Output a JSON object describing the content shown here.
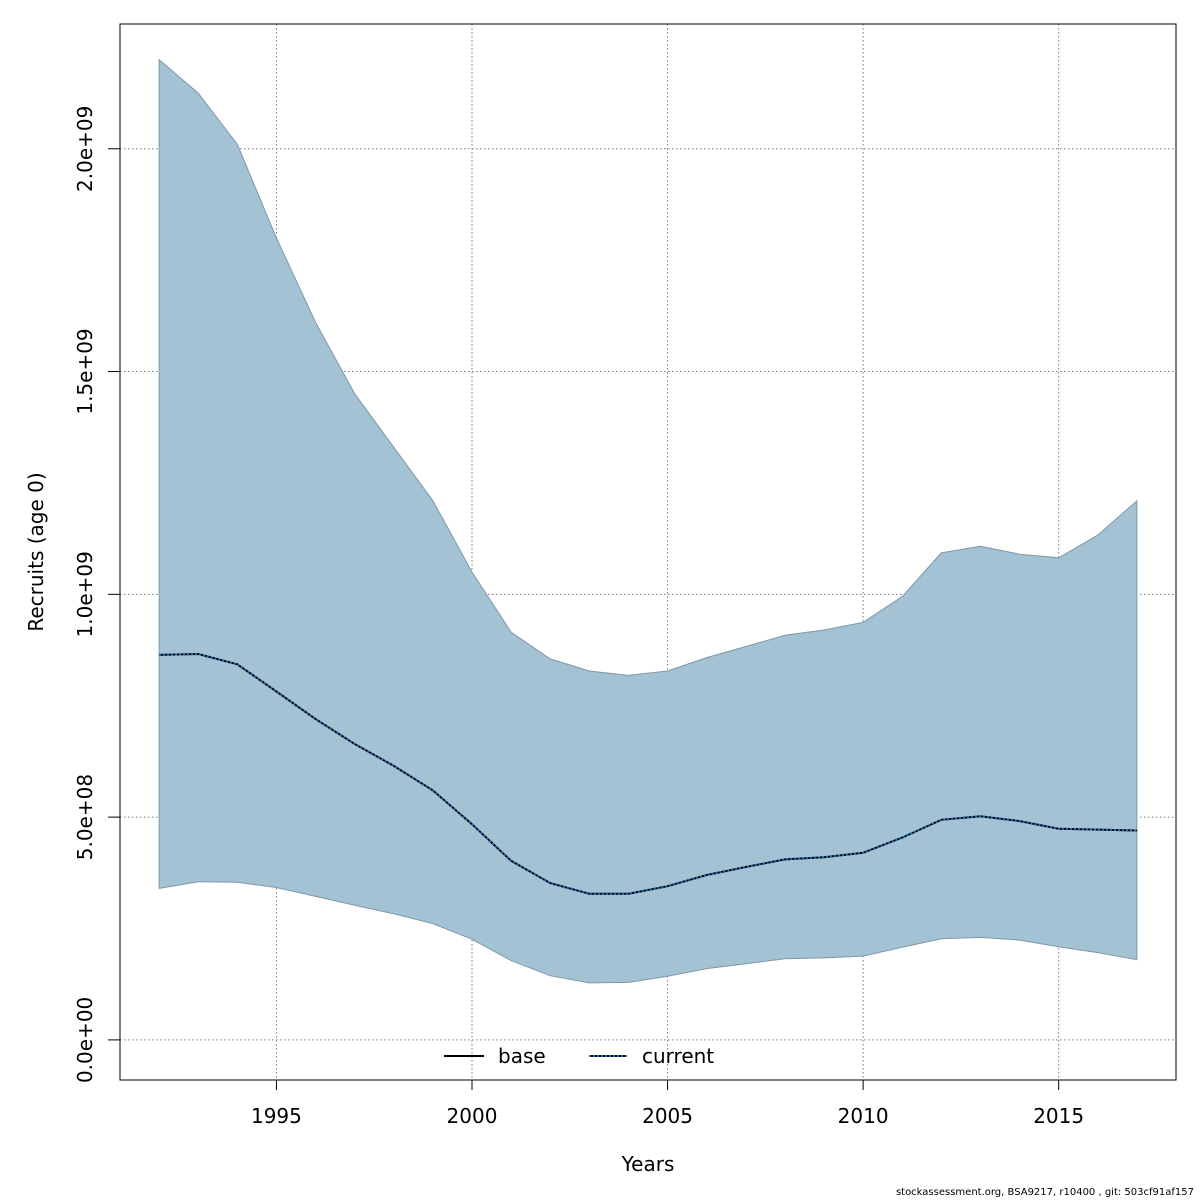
{
  "chart_data": {
    "type": "area",
    "title": "",
    "xlabel": "Years",
    "ylabel": "Recruits (age 0)",
    "xlim": [
      1991,
      2018
    ],
    "ylim": [
      -90000000,
      2280000000
    ],
    "x_ticks": [
      1995,
      2000,
      2005,
      2010,
      2015
    ],
    "x_tick_labels": [
      "1995",
      "2000",
      "2005",
      "2010",
      "2015"
    ],
    "y_ticks": [
      0,
      500000000,
      1000000000,
      1500000000,
      2000000000
    ],
    "y_tick_labels": [
      "0.0e+00",
      "5.0e+08",
      "1.0e+09",
      "1.5e+09",
      "2.0e+09"
    ],
    "grid": true,
    "legend_position": "bottom-center",
    "x": [
      1992,
      1993,
      1994,
      1995,
      1996,
      1997,
      1998,
      1999,
      2000,
      2001,
      2002,
      2003,
      2004,
      2005,
      2006,
      2007,
      2008,
      2009,
      2010,
      2011,
      2012,
      2013,
      2014,
      2015,
      2016,
      2017
    ],
    "band": {
      "upper": [
        2200000000,
        2125000000,
        2010000000,
        1800000000,
        1610000000,
        1450000000,
        1330000000,
        1210000000,
        1050000000,
        915000000,
        855000000,
        828000000,
        818000000,
        828000000,
        858000000,
        883000000,
        908000000,
        920000000,
        937000000,
        995000000,
        1093000000,
        1108000000,
        1090000000,
        1082000000,
        1133000000,
        1210000000
      ],
      "lower": [
        340000000,
        355000000,
        354000000,
        342000000,
        322000000,
        302000000,
        283000000,
        261000000,
        226000000,
        178000000,
        144000000,
        128000000,
        129000000,
        143000000,
        160000000,
        171000000,
        182000000,
        184000000,
        188000000,
        208000000,
        227000000,
        230000000,
        224000000,
        209000000,
        196000000,
        180000000
      ]
    },
    "series": [
      {
        "name": "base",
        "style": "solid",
        "color": "#000000",
        "values": [
          864000000,
          866000000,
          843000000,
          782000000,
          720000000,
          664000000,
          615000000,
          560000000,
          484000000,
          402000000,
          352000000,
          328000000,
          328000000,
          345000000,
          370000000,
          388000000,
          405000000,
          410000000,
          420000000,
          454000000,
          494000000,
          502000000,
          491000000,
          474000000,
          472000000,
          470000000
        ]
      },
      {
        "name": "current",
        "style": "dotted",
        "color": "#1e6fb4",
        "values": [
          864000000,
          866000000,
          843000000,
          782000000,
          720000000,
          664000000,
          615000000,
          560000000,
          484000000,
          402000000,
          352000000,
          328000000,
          328000000,
          345000000,
          370000000,
          388000000,
          405000000,
          410000000,
          420000000,
          454000000,
          494000000,
          502000000,
          491000000,
          474000000,
          472000000,
          470000000
        ]
      }
    ],
    "colors": {
      "band_fill": "#a3c3d4",
      "band_stroke": "#7f97a6",
      "grid": "#7a7a7a"
    }
  },
  "footer": "stockassessment.org, BSA9217, r10400 , git: 503cf91af157"
}
